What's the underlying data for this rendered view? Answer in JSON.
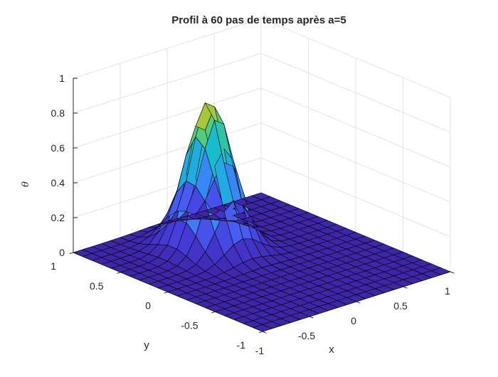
{
  "chart_data": {
    "type": "surface",
    "title": "Profil à 60 pas de temps après a=5",
    "xlabel": "x",
    "ylabel": "y",
    "zlabel": "θ",
    "xlim": [
      -1,
      1
    ],
    "ylim": [
      -1,
      1
    ],
    "zlim": [
      0,
      1
    ],
    "x_ticks": [
      "-1",
      "-0.5",
      "0",
      "0.5",
      "1"
    ],
    "y_ticks": [
      "-1",
      "-0.5",
      "0",
      "0.5",
      "1"
    ],
    "z_ticks": [
      "0",
      "0.2",
      "0.4",
      "0.6",
      "0.8",
      "1"
    ],
    "grid": true,
    "colormap": "parula",
    "surface": {
      "function": "gaussian",
      "peak": 0.85,
      "center_x": -0.1,
      "center_y": 0.45,
      "sigma": 0.18,
      "grid_points": 21
    }
  }
}
